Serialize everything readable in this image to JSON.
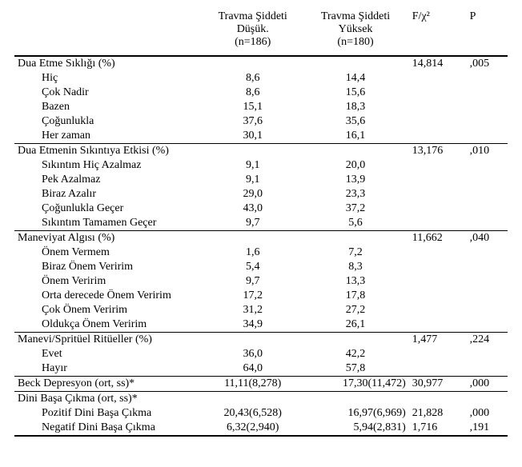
{
  "header": {
    "group1_line1": "Travma Şiddeti",
    "group1_line2": "Düşük.",
    "group1_line3": "(n=186)",
    "group2_line1": "Travma Şiddeti",
    "group2_line2": "Yüksek",
    "group2_line3": "(n=180)",
    "fchi2_html": "F/χ²",
    "p": "P"
  },
  "sections": [
    {
      "title": "Dua Etme Sıklığı (%)",
      "f": "14,814",
      "p": ",005",
      "rows": [
        {
          "label": "Hiç",
          "g1": "8,6",
          "g2": "14,4"
        },
        {
          "label": "Çok Nadir",
          "g1": "8,6",
          "g2": "15,6"
        },
        {
          "label": "Bazen",
          "g1": "15,1",
          "g2": "18,3"
        },
        {
          "label": "Çoğunlukla",
          "g1": "37,6",
          "g2": "35,6"
        },
        {
          "label": "Her zaman",
          "g1": "30,1",
          "g2": "16,1"
        }
      ]
    },
    {
      "title": "Dua Etmenin Sıkıntıya Etkisi (%)",
      "f": "13,176",
      "p": ",010",
      "rows": [
        {
          "label": "Sıkıntım Hiç Azalmaz",
          "g1": "9,1",
          "g2": "20,0"
        },
        {
          "label": "Pek Azalmaz",
          "g1": "9,1",
          "g2": "13,9"
        },
        {
          "label": "Biraz Azalır",
          "g1": "29,0",
          "g2": "23,3"
        },
        {
          "label": "Çoğunlukla Geçer",
          "g1": "43,0",
          "g2": "37,2"
        },
        {
          "label": "Sıkıntım Tamamen Geçer",
          "g1": "9,7",
          "g2": "5,6"
        }
      ]
    },
    {
      "title": "Maneviyat Algısı (%)",
      "f": "11,662",
      "p": ",040",
      "rows": [
        {
          "label": "Önem Vermem",
          "g1": "1,6",
          "g2": "7,2"
        },
        {
          "label": "Biraz Önem Veririm",
          "g1": "5,4",
          "g2": "8,3"
        },
        {
          "label": "Önem Veririm",
          "g1": "9,7",
          "g2": "13,3"
        },
        {
          "label": "Orta derecede Önem Veririm",
          "g1": "17,2",
          "g2": "17,8"
        },
        {
          "label": "Çok Önem Veririm",
          "g1": "31,2",
          "g2": "27,2"
        },
        {
          "label": "Oldukça Önem Veririm",
          "g1": "34,9",
          "g2": "26,1"
        }
      ]
    },
    {
      "title": "Manevi/Spritüel Ritüeller (%)",
      "f": "1,477",
      "p": ",224",
      "rows": [
        {
          "label": "Evet",
          "g1": "36,0",
          "g2": "42,2"
        },
        {
          "label": "Hayır",
          "g1": "64,0",
          "g2": "57,8"
        }
      ]
    }
  ],
  "beck": {
    "label": "Beck Depresyon (ort, ss)*",
    "g1": "11,11(8,278)",
    "g2": "17,30(11,472)",
    "f": "30,977",
    "p": ",000"
  },
  "dini": {
    "label": "Dini Başa Çıkma (ort, ss)*",
    "rows": [
      {
        "label": "Pozitif Dini Başa Çıkma",
        "g1": "20,43(6,528)",
        "g2": "16,97(6,969)",
        "f": "21,828",
        "p": ",000"
      },
      {
        "label": "Negatif Dini Başa Çıkma",
        "g1": "6,32(2,940)",
        "g2": "5,94(2,831)",
        "f": "1,716",
        "p": ",191"
      }
    ]
  }
}
